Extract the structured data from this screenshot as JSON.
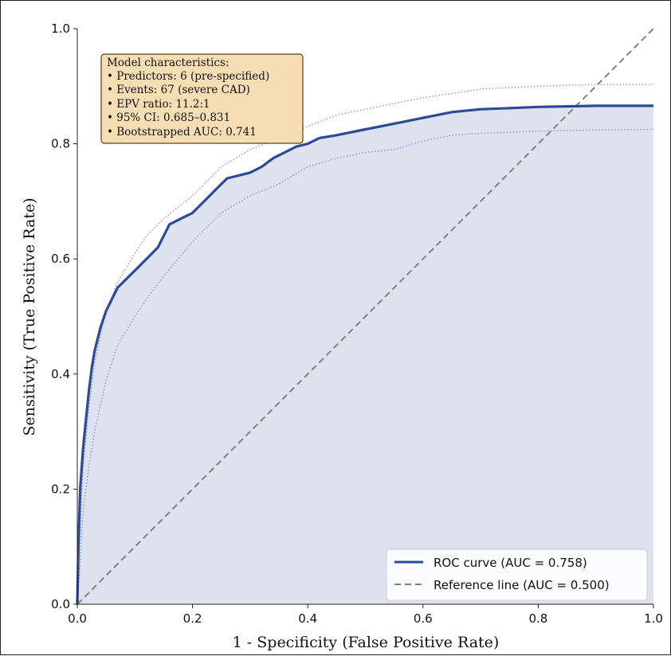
{
  "chart_data": {
    "type": "line",
    "xlabel": "1 - Specificity (False Positive Rate)",
    "ylabel": "Sensitivity (True Positive Rate)",
    "xlim": [
      0,
      1
    ],
    "ylim": [
      0,
      1
    ],
    "x_ticks": [
      "0.0",
      "0.2",
      "0.4",
      "0.6",
      "0.8",
      "1.0"
    ],
    "y_ticks": [
      "0.0",
      "0.2",
      "0.4",
      "0.6",
      "0.8",
      "1.0"
    ],
    "grid": false,
    "legend_position": "bottom-right",
    "series": [
      {
        "name": "ROC curve (AUC = 0.758)",
        "style": "solid",
        "color": "#2c4a9a",
        "x": [
          0,
          0.002,
          0.005,
          0.01,
          0.015,
          0.02,
          0.025,
          0.03,
          0.04,
          0.05,
          0.06,
          0.07,
          0.08,
          0.09,
          0.1,
          0.12,
          0.14,
          0.15,
          0.16,
          0.18,
          0.2,
          0.22,
          0.24,
          0.26,
          0.28,
          0.3,
          0.32,
          0.34,
          0.36,
          0.38,
          0.4,
          0.42,
          0.45,
          0.5,
          0.55,
          0.6,
          0.65,
          0.7,
          0.75,
          0.8,
          0.85,
          0.9,
          1.0
        ],
        "y": [
          0,
          0.1,
          0.2,
          0.27,
          0.32,
          0.37,
          0.41,
          0.44,
          0.48,
          0.51,
          0.53,
          0.55,
          0.56,
          0.57,
          0.58,
          0.6,
          0.62,
          0.64,
          0.66,
          0.67,
          0.68,
          0.7,
          0.72,
          0.74,
          0.745,
          0.75,
          0.76,
          0.775,
          0.785,
          0.795,
          0.8,
          0.81,
          0.815,
          0.825,
          0.835,
          0.845,
          0.855,
          0.86,
          0.862,
          0.864,
          0.865,
          0.866,
          0.866
        ]
      },
      {
        "name": "Reference line (AUC = 0.500)",
        "style": "dashed",
        "color": "#808080",
        "x": [
          0,
          1
        ],
        "y": [
          0,
          1
        ]
      },
      {
        "style": "dotted",
        "color": "#7d8ed0",
        "x": [
          0,
          0.005,
          0.01,
          0.02,
          0.03,
          0.05,
          0.07,
          0.1,
          0.12,
          0.15,
          0.2,
          0.25,
          0.3,
          0.35,
          0.4,
          0.45,
          0.5,
          0.55,
          0.6,
          0.7,
          0.8,
          0.9,
          1.0
        ],
        "y": [
          0,
          0.14,
          0.24,
          0.34,
          0.42,
          0.51,
          0.56,
          0.61,
          0.64,
          0.67,
          0.71,
          0.76,
          0.79,
          0.81,
          0.83,
          0.85,
          0.86,
          0.87,
          0.88,
          0.895,
          0.9,
          0.903,
          0.903
        ]
      },
      {
        "style": "dotted",
        "color": "#7d8ed0",
        "x": [
          0,
          0.005,
          0.01,
          0.02,
          0.03,
          0.05,
          0.07,
          0.1,
          0.12,
          0.15,
          0.2,
          0.25,
          0.3,
          0.35,
          0.4,
          0.45,
          0.5,
          0.55,
          0.6,
          0.65,
          0.7,
          0.8,
          0.9,
          1.0
        ],
        "y": [
          0,
          0.07,
          0.16,
          0.24,
          0.3,
          0.39,
          0.45,
          0.5,
          0.53,
          0.57,
          0.63,
          0.68,
          0.71,
          0.73,
          0.76,
          0.775,
          0.785,
          0.79,
          0.805,
          0.815,
          0.818,
          0.822,
          0.824,
          0.825
        ]
      }
    ],
    "annotation": {
      "lines": [
        "Model characteristics:",
        "• Predictors: 6 (pre-specified)",
        "• Events: 67 (severe CAD)",
        "• EPV ratio: 11.2:1",
        "• 95% CI: 0.685–0.831",
        "• Bootstrapped AUC: 0.741"
      ],
      "background": "#f5deb3",
      "border": "#5a4020"
    },
    "fill_color": "#dde2ee"
  }
}
